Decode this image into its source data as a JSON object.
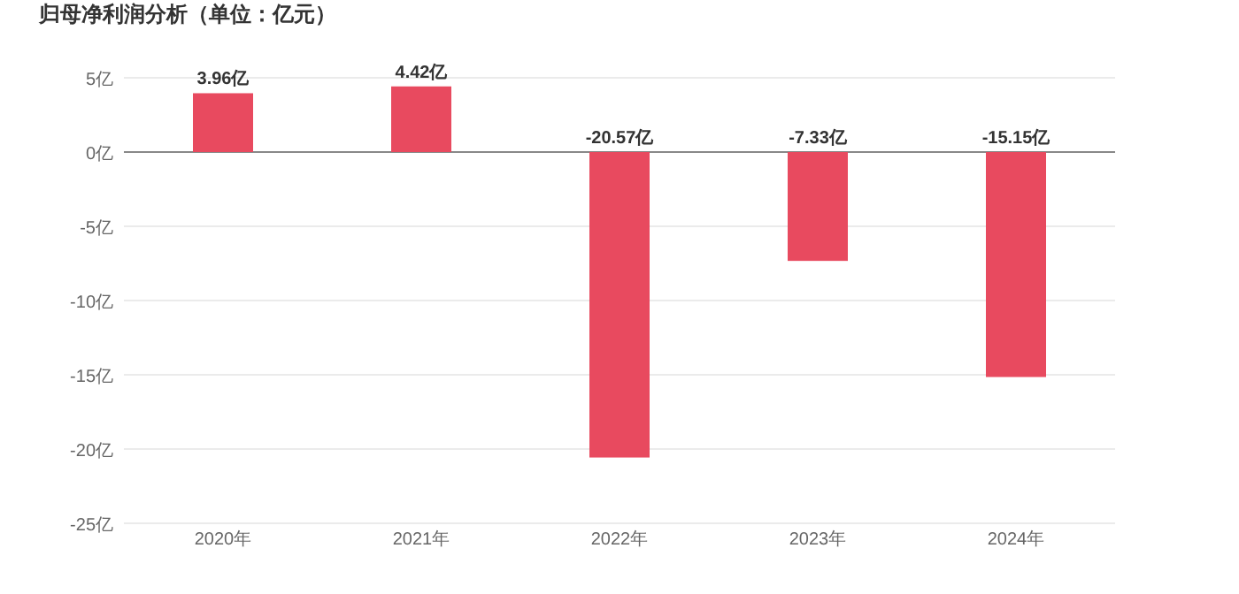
{
  "chart_data": {
    "type": "bar",
    "title": "归母净利润分析（单位：亿元）",
    "categories": [
      "2020年",
      "2021年",
      "2022年",
      "2023年",
      "2024年"
    ],
    "values": [
      3.96,
      4.42,
      -20.57,
      -7.33,
      -15.15
    ],
    "value_labels": [
      "3.96亿",
      "4.42亿",
      "-20.57亿",
      "-7.33亿",
      "-15.15亿"
    ],
    "color": "#e84a5f",
    "ylim": [
      -25,
      5
    ],
    "yticks": [
      {
        "value": 5,
        "label": "5亿"
      },
      {
        "value": 0,
        "label": "0亿"
      },
      {
        "value": -5,
        "label": "-5亿"
      },
      {
        "value": -10,
        "label": "-10亿"
      },
      {
        "value": -15,
        "label": "-15亿"
      },
      {
        "value": -20,
        "label": "-20亿"
      },
      {
        "value": -25,
        "label": "-25亿"
      }
    ],
    "grid": "y"
  }
}
